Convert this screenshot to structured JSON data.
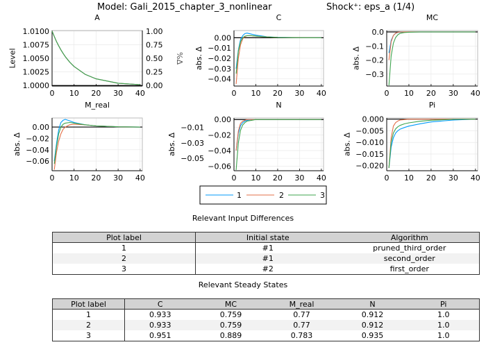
{
  "title": {
    "model": "Model: Gali_2015_chapter_3_nonlinear",
    "shock": "Shock⁺: eps_a  (1/4)"
  },
  "colors": {
    "1": "#009AFA",
    "2": "#E36F47",
    "3": "#3EA44E",
    "steady_state_line": "#000000"
  },
  "legend": {
    "placement": "bottom-center",
    "entries": [
      "1",
      "2",
      "3"
    ]
  },
  "chart_data": [
    {
      "type": "line",
      "title": "A",
      "ylabel": "Level",
      "ylabel_right": "%Δ",
      "xlim": [
        0,
        41
      ],
      "ylim": [
        0.9999,
        1.0101
      ],
      "xticks": [
        0,
        10,
        20,
        30,
        40
      ],
      "yticks": [
        1.0,
        1.0025,
        1.005,
        1.0075,
        1.01
      ],
      "ytick_labels": [
        "1.0000",
        "1.0025",
        "1.0050",
        "1.0075",
        "1.0100"
      ],
      "ytick_labels_right": [
        "0.00",
        "0.25",
        "0.50",
        "0.75",
        "1.00"
      ],
      "baseline": 1.0,
      "x": [
        0,
        1,
        2,
        3,
        4,
        5,
        6,
        8,
        10,
        15,
        20,
        30,
        40
      ],
      "series": [
        {
          "name": "1",
          "values": [
            1.01,
            1.009,
            1.0081,
            1.0073,
            1.00656,
            1.0059,
            1.00531,
            1.0043,
            1.00349,
            1.00206,
            1.00122,
            1.00042,
            1.00015
          ]
        },
        {
          "name": "2",
          "values": [
            1.01,
            1.009,
            1.0081,
            1.0073,
            1.00656,
            1.0059,
            1.00531,
            1.0043,
            1.00349,
            1.00206,
            1.00122,
            1.00042,
            1.00015
          ]
        },
        {
          "name": "3",
          "values": [
            1.01,
            1.009,
            1.0081,
            1.0073,
            1.00656,
            1.0059,
            1.00531,
            1.0043,
            1.00349,
            1.00206,
            1.00122,
            1.00042,
            1.00015
          ]
        }
      ]
    },
    {
      "type": "line",
      "title": "C",
      "ylabel": "abs. Δ",
      "xlim": [
        0,
        41
      ],
      "ylim": [
        -0.047,
        0.007
      ],
      "xticks": [
        0,
        10,
        20,
        30,
        40
      ],
      "yticks": [
        -0.04,
        -0.03,
        -0.02,
        -0.01,
        0.0
      ],
      "ytick_labels": [
        "−0.04",
        "−0.03",
        "−0.02",
        "−0.01",
        "0.00"
      ],
      "baseline": 0,
      "x": [
        1,
        2,
        3,
        4,
        5,
        6,
        8,
        10,
        15,
        20,
        30,
        40
      ],
      "series": [
        {
          "name": "1",
          "values": [
            -0.03,
            -0.012,
            -0.002,
            0.002,
            0.004,
            0.0045,
            0.0035,
            0.0025,
            0.001,
            0.0004,
            0.0001,
            0
          ]
        },
        {
          "name": "2",
          "values": [
            -0.045,
            -0.02,
            -0.007,
            -0.001,
            0.001,
            0.002,
            0.002,
            0.0015,
            0.0008,
            0.0003,
            0.0001,
            0
          ]
        },
        {
          "name": "3",
          "values": [
            -0.035,
            -0.013,
            -0.004,
            0.0,
            0.0015,
            0.002,
            0.002,
            0.0015,
            0.0008,
            0.0003,
            0.0001,
            0
          ]
        }
      ]
    },
    {
      "type": "line",
      "title": "MC",
      "ylabel": "abs. Δ",
      "xlim": [
        0,
        41
      ],
      "ylim": [
        -0.385,
        0.01
      ],
      "xticks": [
        0,
        10,
        20,
        30,
        40
      ],
      "yticks": [
        -0.3,
        -0.2,
        -0.1,
        0.0
      ],
      "ytick_labels": [
        "−0.3",
        "−0.2",
        "−0.1",
        "0.0"
      ],
      "baseline": 0,
      "x": [
        1,
        2,
        3,
        4,
        5,
        6,
        8,
        10,
        15,
        20,
        30,
        40
      ],
      "series": [
        {
          "name": "1",
          "values": [
            -0.15,
            -0.06,
            -0.025,
            -0.01,
            -0.004,
            -0.002,
            -0.001,
            0,
            0,
            0,
            0,
            0
          ]
        },
        {
          "name": "2",
          "values": [
            -0.2,
            -0.07,
            -0.025,
            -0.009,
            -0.003,
            -0.001,
            0,
            0,
            0,
            0,
            0,
            0
          ]
        },
        {
          "name": "3",
          "values": [
            -0.38,
            -0.17,
            -0.08,
            -0.04,
            -0.02,
            -0.01,
            -0.004,
            -0.002,
            0,
            0,
            0,
            0
          ]
        }
      ]
    },
    {
      "type": "line",
      "title": "M_real",
      "ylabel": "abs. Δ",
      "xlim": [
        0,
        41
      ],
      "ylim": [
        -0.077,
        0.016
      ],
      "xticks": [
        0,
        10,
        20,
        30,
        40
      ],
      "yticks": [
        -0.06,
        -0.04,
        -0.02,
        0.0
      ],
      "ytick_labels": [
        "−0.06",
        "−0.04",
        "−0.02",
        "0.00"
      ],
      "baseline": 0,
      "x": [
        1,
        2,
        3,
        4,
        5,
        6,
        8,
        10,
        15,
        20,
        30,
        40
      ],
      "series": [
        {
          "name": "1",
          "values": [
            -0.06,
            -0.03,
            -0.005,
            0.008,
            0.012,
            0.0135,
            0.011,
            0.008,
            0.004,
            0.002,
            0.0005,
            0
          ]
        },
        {
          "name": "2",
          "values": [
            -0.075,
            -0.045,
            -0.025,
            -0.012,
            -0.004,
            0.0,
            0.004,
            0.005,
            0.004,
            0.002,
            0.0005,
            0
          ]
        },
        {
          "name": "3",
          "values": [
            -0.065,
            -0.035,
            -0.012,
            0.0,
            0.005,
            0.007,
            0.008,
            0.007,
            0.004,
            0.002,
            0.0005,
            0
          ]
        }
      ]
    },
    {
      "type": "line",
      "title": "N",
      "ylabel": "abs. Δ",
      "xlim": [
        0,
        41
      ],
      "ylim": [
        -0.066,
        0.002
      ],
      "xticks": [
        0,
        10,
        20,
        30,
        40
      ],
      "yticks": [
        -0.06,
        -0.05,
        -0.04,
        -0.03,
        -0.02,
        -0.01,
        0.0
      ],
      "ytick_labels": [
        "−0.06",
        "−0.05",
        "−0.04",
        "−0.03",
        "−0.02",
        "−0.01",
        "0.00"
      ],
      "baseline": 0,
      "x": [
        1,
        2,
        3,
        4,
        5,
        6,
        8,
        10,
        15,
        20,
        30,
        40
      ],
      "series": [
        {
          "name": "1",
          "values": [
            -0.04,
            -0.018,
            -0.008,
            -0.004,
            -0.002,
            -0.001,
            0,
            0,
            0,
            0,
            0,
            0
          ]
        },
        {
          "name": "2",
          "values": [
            -0.04,
            -0.015,
            -0.005,
            -0.002,
            -0.001,
            0,
            0,
            0,
            0,
            0,
            0,
            0
          ]
        },
        {
          "name": "3",
          "values": [
            -0.065,
            -0.03,
            -0.014,
            -0.007,
            -0.004,
            -0.002,
            -0.001,
            0,
            0,
            0,
            0,
            0
          ]
        }
      ]
    },
    {
      "type": "line",
      "title": "Pi",
      "ylabel": "abs. Δ",
      "xlim": [
        0,
        41
      ],
      "ylim": [
        -0.0222,
        0.0005
      ],
      "xticks": [
        0,
        10,
        20,
        30,
        40
      ],
      "yticks": [
        -0.02,
        -0.015,
        -0.01,
        -0.005,
        0.0
      ],
      "ytick_labels": [
        "−0.020",
        "−0.015",
        "−0.010",
        "−0.005",
        "0.000"
      ],
      "baseline": 0,
      "x": [
        1,
        2,
        3,
        4,
        5,
        6,
        8,
        10,
        15,
        20,
        30,
        40
      ],
      "series": [
        {
          "name": "1",
          "values": [
            -0.021,
            -0.012,
            -0.008,
            -0.006,
            -0.005,
            -0.0043,
            -0.0036,
            -0.003,
            -0.002,
            -0.0012,
            -0.0004,
            0
          ]
        },
        {
          "name": "2",
          "values": [
            -0.021,
            -0.008,
            -0.003,
            -0.0015,
            -0.0008,
            -0.0004,
            -0.0002,
            0,
            0,
            0,
            0,
            0
          ]
        },
        {
          "name": "3",
          "values": [
            -0.021,
            -0.01,
            -0.006,
            -0.0042,
            -0.0033,
            -0.0027,
            -0.002,
            -0.0016,
            -0.0009,
            -0.0005,
            -0.0001,
            0
          ]
        }
      ]
    }
  ],
  "input_differences": {
    "title": "Relevant Input Differences",
    "headers": [
      "Plot label",
      "Initial state",
      "Algorithm"
    ],
    "rows": [
      [
        "1",
        "#1",
        "pruned_third_order"
      ],
      [
        "2",
        "#1",
        "second_order"
      ],
      [
        "3",
        "#2",
        "first_order"
      ]
    ]
  },
  "steady_states": {
    "title": "Relevant Steady States",
    "headers": [
      "Plot label",
      "C",
      "MC",
      "M_real",
      "N",
      "Pi"
    ],
    "rows": [
      [
        "1",
        "0.933",
        "0.759",
        "0.77",
        "0.912",
        "1.0"
      ],
      [
        "2",
        "0.933",
        "0.759",
        "0.77",
        "0.912",
        "1.0"
      ],
      [
        "3",
        "0.951",
        "0.889",
        "0.783",
        "0.935",
        "1.0"
      ]
    ]
  }
}
